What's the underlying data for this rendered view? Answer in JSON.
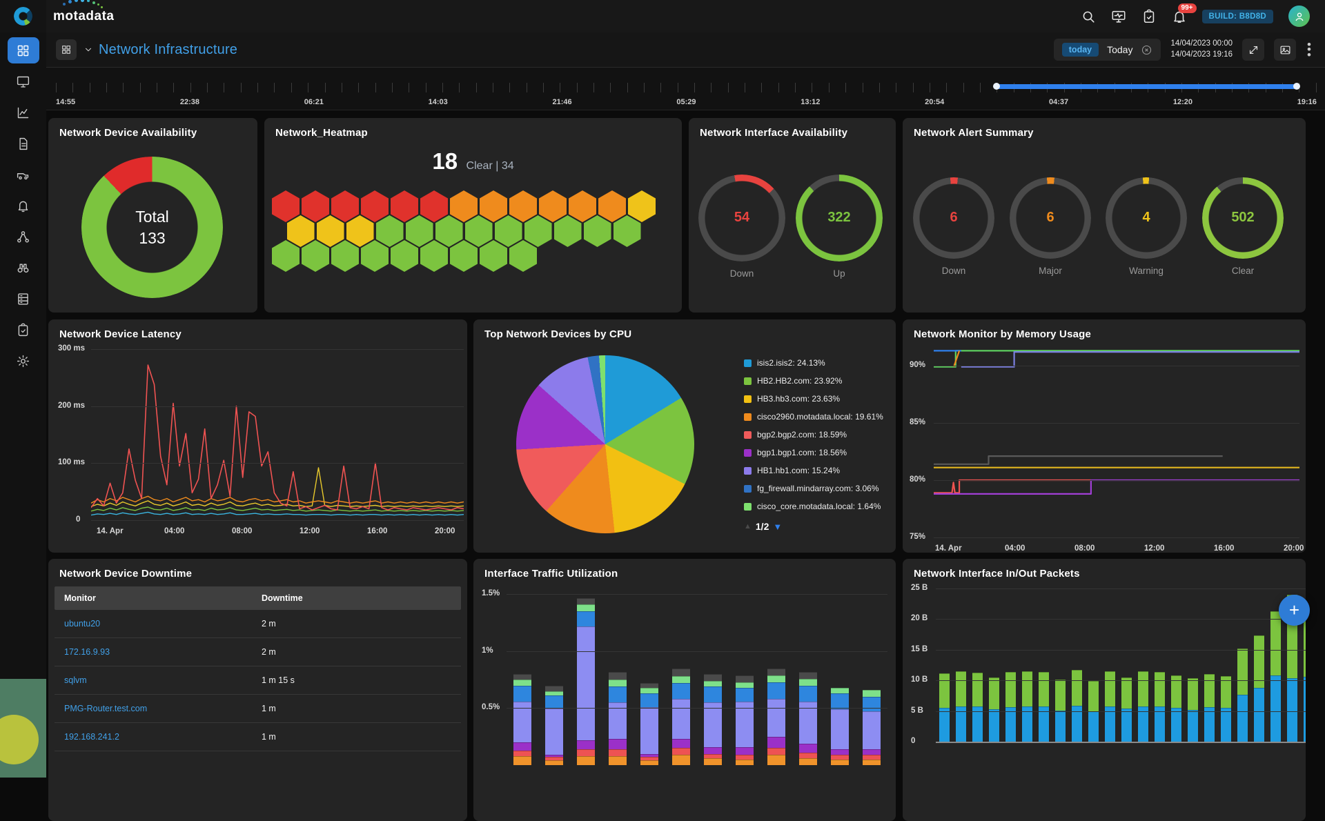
{
  "topbar": {
    "brand": "motadata",
    "build_badge": "BUILD: B8D8D",
    "notification_count": "99+",
    "icons": [
      "search",
      "display",
      "tasks",
      "notifications",
      "avatar"
    ]
  },
  "header": {
    "title": "Network Infrastructure",
    "time_chip": "today",
    "time_select": "Today",
    "date_from": "14/04/2023 00:00",
    "date_to": "14/04/2023 19:16"
  },
  "timeline": {
    "labels": [
      "14:55",
      "22:38",
      "06:21",
      "14:03",
      "21:46",
      "05:29",
      "13:12",
      "20:54",
      "04:37",
      "12:20",
      "19:16"
    ],
    "tick_count": 76,
    "selection_start_pct": 74.5,
    "selection_end_pct": 98.5
  },
  "sidebar": {
    "items": [
      {
        "icon": "dashboard-grid",
        "active": true
      },
      {
        "icon": "monitor-screen",
        "active": false
      },
      {
        "icon": "metric-chart",
        "active": false
      },
      {
        "icon": "report-file",
        "active": false
      },
      {
        "icon": "vehicle",
        "active": false
      },
      {
        "icon": "alert-bell",
        "active": false
      },
      {
        "icon": "topology",
        "active": false
      },
      {
        "icon": "discovery-binoculars",
        "active": false
      },
      {
        "icon": "inventory-rack",
        "active": false
      },
      {
        "icon": "runbook-clipboard",
        "active": false
      },
      {
        "icon": "settings-gear",
        "active": false
      }
    ]
  },
  "fab_label": "+",
  "chart_data": [
    {
      "id": "device_availability",
      "type": "pie",
      "donut": true,
      "title": "Network Device Availability",
      "center_label": "Total",
      "center_value": "133",
      "slices": [
        {
          "name": "up",
          "value": 88,
          "color": "#7cc43f"
        },
        {
          "name": "down",
          "value": 12,
          "color": "#e02b2b"
        }
      ]
    },
    {
      "id": "network_heatmap",
      "type": "heatmap",
      "title": "Network_Heatmap",
      "headline_value": "18",
      "headline_label": "Clear | 34",
      "cell_colors": {
        "critical": "#e0322c",
        "major": "#ef8b1d",
        "warning": "#efc31a",
        "clear": "#7cc43f"
      },
      "rows": [
        [
          "critical",
          "critical",
          "critical",
          "critical",
          "critical",
          "critical",
          "major",
          "major",
          "major",
          "major",
          "major",
          "major",
          "warning"
        ],
        [
          "warning",
          "warning",
          "warning",
          "clear",
          "clear",
          "clear",
          "clear",
          "clear",
          "clear",
          "clear",
          "clear",
          "clear"
        ],
        [
          "clear",
          "clear",
          "clear",
          "clear",
          "clear",
          "clear",
          "clear",
          "clear",
          "clear"
        ]
      ]
    },
    {
      "id": "interface_availability",
      "type": "gauge",
      "title": "Network Interface Availability",
      "gauges": [
        {
          "label": "Down",
          "value": "54",
          "color": "#e8433f",
          "start_deg": -10,
          "sweep_pct": 16
        },
        {
          "label": "Up",
          "value": "322",
          "color": "#7cc43f",
          "start_deg": 0,
          "sweep_pct": 88
        }
      ]
    },
    {
      "id": "alert_summary",
      "type": "gauge",
      "title": "Network Alert Summary",
      "gauges": [
        {
          "label": "Down",
          "value": "6",
          "color": "#e8433f",
          "start_deg": -5,
          "sweep_pct": 3
        },
        {
          "label": "Major",
          "value": "6",
          "color": "#ef8b1d",
          "start_deg": -5,
          "sweep_pct": 3
        },
        {
          "label": "Warning",
          "value": "4",
          "color": "#efc31a",
          "start_deg": -5,
          "sweep_pct": 2.5
        },
        {
          "label": "Clear",
          "value": "502",
          "color": "#8dc63f",
          "start_deg": 0,
          "sweep_pct": 89
        }
      ]
    },
    {
      "id": "device_latency",
      "type": "line",
      "title": "Network Device Latency",
      "y_ticks": [
        "300 ms",
        "200 ms",
        "100 ms",
        "0"
      ],
      "y_max": 300,
      "x_ticks": [
        "14. Apr",
        "04:00",
        "08:00",
        "12:00",
        "16:00",
        "20:00"
      ],
      "series": [
        {
          "name": "latency-high",
          "color": "#f05352",
          "values": [
            22,
            38,
            25,
            65,
            30,
            48,
            125,
            70,
            38,
            272,
            238,
            112,
            62,
            205,
            95,
            152,
            48,
            72,
            160,
            38,
            62,
            105,
            42,
            200,
            75,
            190,
            182,
            95,
            120,
            48,
            30,
            25,
            85,
            20,
            24,
            18,
            22,
            26,
            20,
            18,
            95,
            22,
            20,
            24,
            20,
            100,
            22,
            18,
            22,
            20,
            18,
            22,
            20,
            18,
            20,
            22,
            20,
            18,
            22,
            20
          ]
        },
        {
          "name": "latency-orange",
          "color": "#ef8b1d",
          "values": [
            30,
            36,
            32,
            38,
            34,
            40,
            36,
            32,
            38,
            42,
            36,
            34,
            38,
            32,
            36,
            40,
            34,
            36,
            32,
            38,
            34,
            36,
            40,
            34,
            32,
            36,
            38,
            34,
            36,
            32,
            34,
            36,
            32,
            34,
            30,
            32,
            34,
            32,
            30,
            34,
            32,
            30,
            32,
            30,
            32,
            34,
            30,
            32,
            30,
            32,
            30,
            32,
            30,
            32,
            30,
            32,
            30,
            32,
            30,
            32
          ]
        },
        {
          "name": "latency-yellow",
          "color": "#e8c92c",
          "values": [
            24,
            28,
            25,
            30,
            26,
            32,
            28,
            25,
            30,
            34,
            28,
            26,
            30,
            25,
            28,
            32,
            26,
            28,
            25,
            30,
            26,
            28,
            32,
            26,
            25,
            28,
            30,
            26,
            28,
            25,
            26,
            28,
            25,
            26,
            24,
            25,
            92,
            26,
            24,
            26,
            25,
            24,
            25,
            24,
            25,
            26,
            24,
            25,
            24,
            25,
            24,
            25,
            24,
            25,
            24,
            25,
            24,
            25,
            24,
            25
          ]
        },
        {
          "name": "latency-green",
          "color": "#7cc43f",
          "values": [
            16,
            19,
            17,
            21,
            18,
            22,
            19,
            17,
            21,
            23,
            19,
            18,
            21,
            17,
            19,
            22,
            18,
            19,
            17,
            21,
            18,
            19,
            22,
            18,
            17,
            19,
            21,
            18,
            19,
            17,
            18,
            19,
            17,
            18,
            16,
            17,
            18,
            17,
            16,
            18,
            17,
            16,
            17,
            16,
            17,
            18,
            16,
            17,
            16,
            17,
            16,
            17,
            16,
            17,
            16,
            17,
            16,
            17,
            16,
            17
          ]
        },
        {
          "name": "latency-cyan",
          "color": "#3ab5e0",
          "values": [
            9,
            11,
            10,
            12,
            10,
            13,
            11,
            10,
            12,
            14,
            11,
            10,
            12,
            10,
            11,
            13,
            10,
            11,
            10,
            12,
            10,
            11,
            13,
            10,
            10,
            11,
            12,
            10,
            11,
            10,
            10,
            11,
            10,
            10,
            9,
            10,
            10,
            10,
            9,
            10,
            10,
            9,
            10,
            9,
            10,
            10,
            9,
            10,
            9,
            10,
            9,
            10,
            9,
            10,
            9,
            10,
            9,
            10,
            9,
            10
          ]
        }
      ]
    },
    {
      "id": "top_cpu",
      "type": "pie",
      "title": "Top Network Devices by CPU",
      "pagination": "1/2",
      "legend": [
        {
          "label": "isis2.isis2: 24.13%",
          "value": 24.13,
          "color": "#1f9bd7"
        },
        {
          "label": "HB2.HB2.com: 23.92%",
          "value": 23.92,
          "color": "#7cc43f"
        },
        {
          "label": "HB3.hb3.com: 23.63%",
          "value": 23.63,
          "color": "#f2c012"
        },
        {
          "label": "cisco2960.motadata.local: 19.61%",
          "value": 19.61,
          "color": "#ef8b1d"
        },
        {
          "label": "bgp2.bgp2.com: 18.59%",
          "value": 18.59,
          "color": "#f05b5b"
        },
        {
          "label": "bgp1.bgp1.com: 18.56%",
          "value": 18.56,
          "color": "#9b30c8"
        },
        {
          "label": "HB1.hb1.com: 15.24%",
          "value": 15.24,
          "color": "#8c7beb"
        },
        {
          "label": "fg_firewall.mindarray.com: 3.06%",
          "value": 3.06,
          "color": "#3072c4"
        },
        {
          "label": "cisco_core.motadata.local: 1.64%",
          "value": 1.64,
          "color": "#7ee06e"
        }
      ]
    },
    {
      "id": "memory_usage",
      "type": "step-line",
      "title": "Network Monitor by Memory Usage",
      "y_ticks": [
        "90%",
        "85%",
        "80%",
        "75%"
      ],
      "x_ticks": [
        "14. Apr",
        "04:00",
        "08:00",
        "12:00",
        "16:00",
        "20:00"
      ],
      "series": [
        {
          "name": "mem-green",
          "color": "#5dd05f",
          "points": [
            [
              0,
              89.9
            ],
            [
              6,
              89.9
            ],
            [
              6,
              91.3
            ],
            [
              100,
              91.3
            ]
          ]
        },
        {
          "name": "mem-blue",
          "color": "#2f80ed",
          "points": [
            [
              0,
              91.3
            ],
            [
              7.5,
              91.3
            ]
          ]
        },
        {
          "name": "mem-orange",
          "color": "#ef8b1d",
          "points": [
            [
              5.5,
              89.9
            ],
            [
              7,
              91.3
            ]
          ]
        },
        {
          "name": "mem-periwinkle",
          "color": "#7b7fe0",
          "points": [
            [
              7.5,
              89.9
            ],
            [
              22,
              89.9
            ],
            [
              22,
              91.2
            ],
            [
              100,
              91.2
            ]
          ]
        },
        {
          "name": "mem-gray",
          "color": "#5a5a5a",
          "points": [
            [
              0,
              81.4
            ],
            [
              15,
              81.4
            ],
            [
              15,
              82.1
            ],
            [
              79,
              82.1
            ]
          ]
        },
        {
          "name": "mem-gold",
          "color": "#e3b71e",
          "points": [
            [
              0,
              81.1
            ],
            [
              100,
              81.1
            ]
          ]
        },
        {
          "name": "mem-red",
          "color": "#ef5350",
          "points": [
            [
              0,
              78.9
            ],
            [
              5,
              78.9
            ],
            [
              5.4,
              79.8
            ],
            [
              5.8,
              78.9
            ],
            [
              7,
              78.9
            ],
            [
              7,
              80
            ],
            [
              43,
              80
            ]
          ]
        },
        {
          "name": "mem-purple",
          "color": "#a13fd6",
          "points": [
            [
              0,
              78.8
            ],
            [
              43,
              78.8
            ],
            [
              43,
              80
            ],
            [
              100,
              80
            ]
          ]
        }
      ]
    },
    {
      "id": "device_downtime",
      "type": "table",
      "title": "Network Device Downtime",
      "columns": [
        "Monitor",
        "Downtime"
      ],
      "rows": [
        [
          "ubuntu20",
          "2 m"
        ],
        [
          "172.16.9.93",
          "2 m"
        ],
        [
          "sqlvm",
          "1 m 15 s"
        ],
        [
          "PMG-Router.test.com",
          "1 m"
        ],
        [
          "192.168.241.2",
          "1 m"
        ]
      ]
    },
    {
      "id": "traffic_utilization",
      "type": "stacked-bar",
      "title": "Interface Traffic Utilization",
      "y_ticks": [
        "1.5%",
        "1%",
        "0.5%"
      ],
      "unit": "%",
      "stack_colors": [
        "#f0932b",
        "#ee5253",
        "#9b30c8",
        "#8d8df2",
        "#2e86de",
        "#7ee08a",
        "#4a4a4a"
      ],
      "bars": [
        [
          0.08,
          0.05,
          0.07,
          0.36,
          0.14,
          0.05,
          0.05
        ],
        [
          0.04,
          0.03,
          0.02,
          0.41,
          0.11,
          0.04,
          0.05
        ],
        [
          0.08,
          0.06,
          0.08,
          1.0,
          0.13,
          0.06,
          0.06
        ],
        [
          0.08,
          0.06,
          0.09,
          0.32,
          0.14,
          0.06,
          0.07
        ],
        [
          0.04,
          0.03,
          0.03,
          0.41,
          0.12,
          0.05,
          0.04
        ],
        [
          0.09,
          0.06,
          0.08,
          0.35,
          0.14,
          0.06,
          0.07
        ],
        [
          0.06,
          0.04,
          0.06,
          0.39,
          0.14,
          0.05,
          0.06
        ],
        [
          0.05,
          0.04,
          0.07,
          0.4,
          0.12,
          0.05,
          0.06
        ],
        [
          0.09,
          0.06,
          0.1,
          0.33,
          0.15,
          0.06,
          0.06
        ],
        [
          0.06,
          0.05,
          0.08,
          0.37,
          0.14,
          0.06,
          0.06
        ],
        [
          0.05,
          0.04,
          0.05,
          0.35,
          0.14,
          0.05,
          0
        ],
        [
          0.05,
          0.04,
          0.05,
          0.33,
          0.13,
          0.06,
          0
        ]
      ]
    },
    {
      "id": "inout_packets",
      "type": "stacked-bar",
      "title": "Network Interface In/Out Packets",
      "y_ticks": [
        "25 B",
        "20 B",
        "15 B",
        "10 B",
        "5 B",
        "0"
      ],
      "unit": "B",
      "series": [
        {
          "name": "in",
          "color": "#1e9be0",
          "values": [
            5.5,
            5.8,
            5.7,
            5.3,
            5.6,
            5.8,
            5.8,
            5.1,
            5.9,
            5.0,
            5.8,
            5.4,
            5.8,
            5.8,
            5.5,
            5.2,
            5.6,
            5.5,
            7.7,
            8.8,
            10.8,
            10.4,
            10.6
          ]
        },
        {
          "name": "out",
          "color": "#7cc43f",
          "values": [
            5.6,
            5.7,
            5.6,
            5.2,
            5.8,
            5.7,
            5.6,
            5.0,
            5.8,
            4.9,
            5.7,
            5.1,
            5.7,
            5.6,
            5.3,
            5.2,
            5.4,
            5.2,
            7.5,
            8.5,
            10.5,
            13.6,
            10.9
          ]
        }
      ]
    }
  ]
}
